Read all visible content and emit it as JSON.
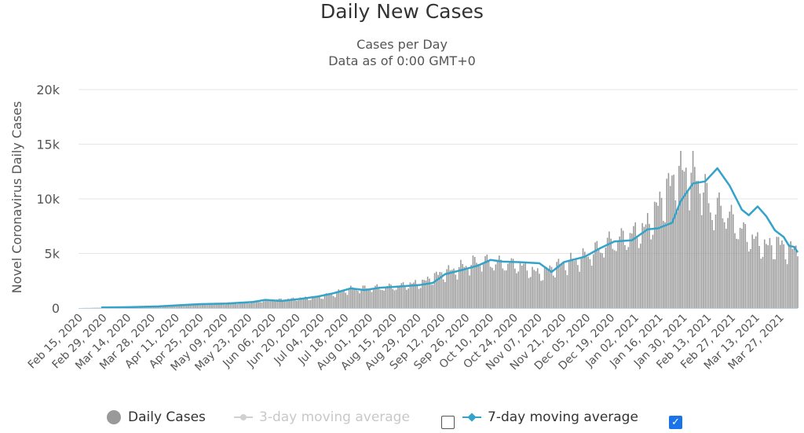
{
  "chart_data": {
    "type": "bar",
    "title": "Daily New Cases",
    "subtitle": [
      "Cases per Day",
      "Data as of 0:00 GMT+0"
    ],
    "ylabel": "Novel Coronavirus Daily Cases",
    "xlabel": "",
    "ylim": [
      0,
      20000
    ],
    "yticks": [
      0,
      5000,
      10000,
      15000,
      20000
    ],
    "ytick_labels": [
      "0",
      "5k",
      "10k",
      "15k",
      "20k"
    ],
    "x_range": [
      "2020-02-15",
      "2021-04-02"
    ],
    "xtick_labels": [
      "Feb 15, 2020",
      "Feb 29, 2020",
      "Mar 14, 2020",
      "Mar 28, 2020",
      "Apr 11, 2020",
      "Apr 25, 2020",
      "May 09, 2020",
      "May 23, 2020",
      "Jun 06, 2020",
      "Jun 20, 2020",
      "Jul 04, 2020",
      "Jul 18, 2020",
      "Aug 01, 2020",
      "Aug 15, 2020",
      "Aug 29, 2020",
      "Sep 12, 2020",
      "Sep 26, 2020",
      "Oct 10, 2020",
      "Oct 24, 2020",
      "Nov 07, 2020",
      "Nov 21, 2020",
      "Dec 05, 2020",
      "Dec 19, 2020",
      "Jan 02, 2021",
      "Jan 16, 2021",
      "Jan 30, 2021",
      "Feb 13, 2021",
      "Feb 27, 2021",
      "Mar 13, 2021",
      "Mar 27, 2021"
    ],
    "grid": true,
    "legend_position": "bottom",
    "series": [
      {
        "name": "Daily Cases",
        "type": "bar",
        "color": "#999999",
        "points": [
          [
            "2020-02-15",
            0
          ],
          [
            "2020-03-01",
            40
          ],
          [
            "2020-03-15",
            80
          ],
          [
            "2020-04-01",
            150
          ],
          [
            "2020-04-15",
            250
          ],
          [
            "2020-04-25",
            380
          ],
          [
            "2020-05-10",
            420
          ],
          [
            "2020-05-25",
            550
          ],
          [
            "2020-06-05",
            720
          ],
          [
            "2020-06-20",
            850
          ],
          [
            "2020-07-01",
            1000
          ],
          [
            "2020-07-10",
            1300
          ],
          [
            "2020-07-20",
            1700
          ],
          [
            "2020-08-01",
            1800
          ],
          [
            "2020-08-15",
            1950
          ],
          [
            "2020-08-30",
            2300
          ],
          [
            "2020-09-08",
            3000
          ],
          [
            "2020-09-20",
            3600
          ],
          [
            "2020-10-01",
            4200
          ],
          [
            "2020-10-10",
            4100
          ],
          [
            "2020-10-24",
            3900
          ],
          [
            "2020-11-05",
            3100
          ],
          [
            "2020-11-15",
            3800
          ],
          [
            "2020-12-01",
            4600
          ],
          [
            "2020-12-15",
            5900
          ],
          [
            "2020-12-25",
            6400
          ],
          [
            "2021-01-05",
            7200
          ],
          [
            "2021-01-15",
            10000
          ],
          [
            "2021-01-22",
            11800
          ],
          [
            "2021-01-28",
            12300
          ],
          [
            "2021-02-05",
            11500
          ],
          [
            "2021-02-12",
            8800
          ],
          [
            "2021-02-18",
            9000
          ],
          [
            "2021-02-25",
            7600
          ],
          [
            "2021-03-05",
            6400
          ],
          [
            "2021-03-15",
            5500
          ],
          [
            "2021-03-22",
            5800
          ],
          [
            "2021-03-29",
            5200
          ],
          [
            "2021-04-02",
            5500
          ]
        ]
      },
      {
        "name": "3-day moving average",
        "type": "line",
        "color": "#c8c8c8",
        "visible": false,
        "points": []
      },
      {
        "name": "7-day moving average",
        "type": "line",
        "color": "#33a3c9",
        "points": [
          [
            "2020-02-28",
            50
          ],
          [
            "2020-03-15",
            80
          ],
          [
            "2020-04-01",
            150
          ],
          [
            "2020-04-15",
            280
          ],
          [
            "2020-04-25",
            360
          ],
          [
            "2020-05-10",
            420
          ],
          [
            "2020-05-25",
            560
          ],
          [
            "2020-06-01",
            750
          ],
          [
            "2020-06-10",
            650
          ],
          [
            "2020-06-20",
            820
          ],
          [
            "2020-07-01",
            1050
          ],
          [
            "2020-07-10",
            1350
          ],
          [
            "2020-07-20",
            1800
          ],
          [
            "2020-07-28",
            1650
          ],
          [
            "2020-08-05",
            1850
          ],
          [
            "2020-08-15",
            1950
          ],
          [
            "2020-08-28",
            2100
          ],
          [
            "2020-09-05",
            2300
          ],
          [
            "2020-09-12",
            3100
          ],
          [
            "2020-09-22",
            3500
          ],
          [
            "2020-10-01",
            3900
          ],
          [
            "2020-10-08",
            4400
          ],
          [
            "2020-10-15",
            4250
          ],
          [
            "2020-10-25",
            4200
          ],
          [
            "2020-11-05",
            4100
          ],
          [
            "2020-11-12",
            3300
          ],
          [
            "2020-11-19",
            4200
          ],
          [
            "2020-12-01",
            4700
          ],
          [
            "2020-12-10",
            5500
          ],
          [
            "2020-12-18",
            6100
          ],
          [
            "2020-12-28",
            6200
          ],
          [
            "2021-01-06",
            7200
          ],
          [
            "2021-01-12",
            7300
          ],
          [
            "2021-01-20",
            7800
          ],
          [
            "2021-01-25",
            9800
          ],
          [
            "2021-02-01",
            11400
          ],
          [
            "2021-02-08",
            11600
          ],
          [
            "2021-02-15",
            12800
          ],
          [
            "2021-02-22",
            11200
          ],
          [
            "2021-03-01",
            9000
          ],
          [
            "2021-03-05",
            8500
          ],
          [
            "2021-03-10",
            9300
          ],
          [
            "2021-03-15",
            8400
          ],
          [
            "2021-03-20",
            7100
          ],
          [
            "2021-03-25",
            6500
          ],
          [
            "2021-03-28",
            5700
          ],
          [
            "2021-03-31",
            5600
          ],
          [
            "2021-04-02",
            5100
          ]
        ]
      }
    ]
  },
  "legend": {
    "daily_label": "Daily Cases",
    "three_day_label": "3-day moving average",
    "seven_day_label": "7-day moving average",
    "three_day_checked": false,
    "seven_day_checked": true
  }
}
